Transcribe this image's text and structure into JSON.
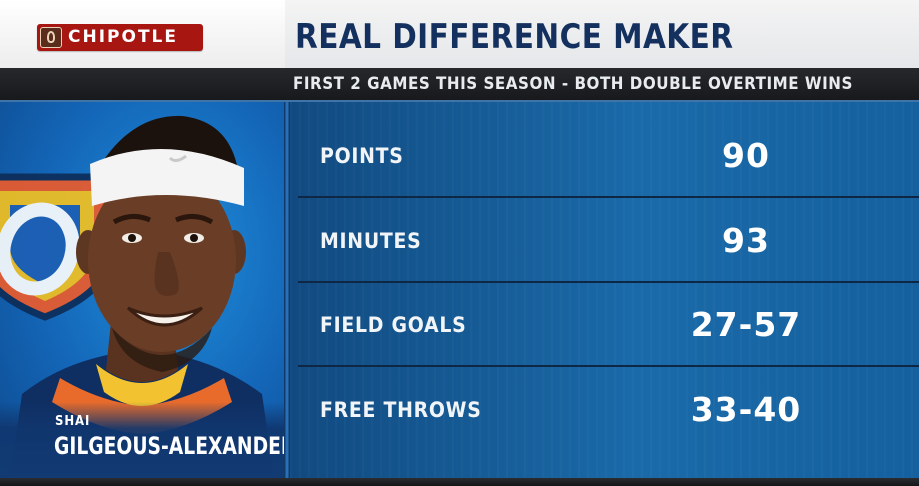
{
  "sponsor": {
    "logo_text": "CHIPOTLE"
  },
  "header": {
    "title": "REAL DIFFERENCE MAKER",
    "subtitle": "FIRST 2 GAMES THIS SEASON - BOTH DOUBLE OVERTIME WINS"
  },
  "player": {
    "first_name": "SHAI",
    "last_name": "GILGEOUS-ALEXANDER",
    "team_logo_icon": "okc-thunder-logo-icon",
    "headshot_icon": "player-headshot-icon"
  },
  "stats": [
    {
      "label": "POINTS",
      "value": "90"
    },
    {
      "label": "MINUTES",
      "value": "93"
    },
    {
      "label": "FIELD GOALS",
      "value": "27-57"
    },
    {
      "label": "FREE THROWS",
      "value": "33-40"
    }
  ],
  "colors": {
    "title_navy": "#14305e",
    "panel_blue": "#1a6aa9",
    "thunder_orange": "#ef5b2a",
    "chipotle_red": "#a81612"
  }
}
